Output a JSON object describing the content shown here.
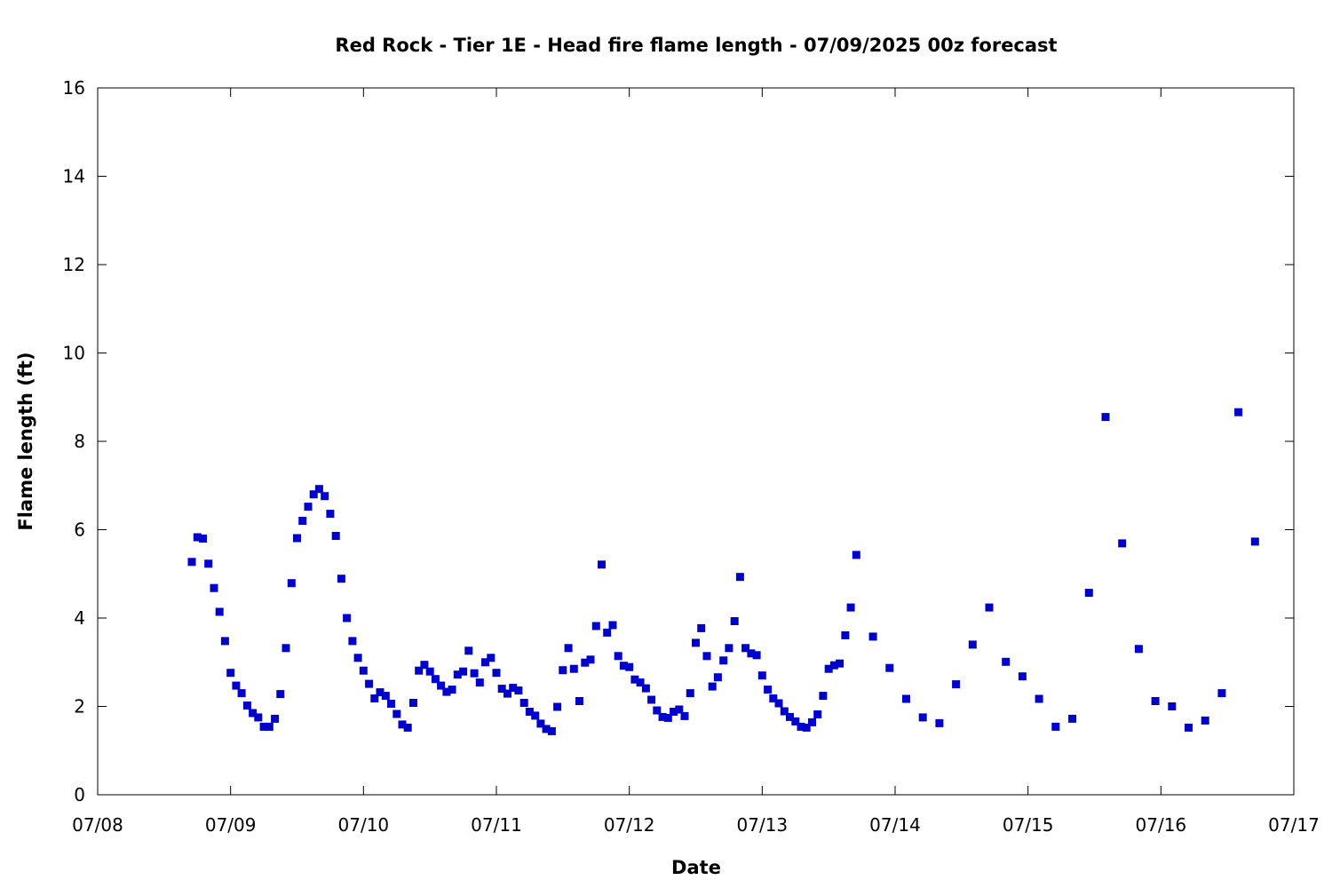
{
  "chart_data": {
    "type": "scatter",
    "title": "Red Rock - Tier 1E - Head fire flame length - 07/09/2025 00z forecast",
    "xlabel": "Date",
    "ylabel": "Flame length (ft)",
    "x_axis": {
      "min": "07/08",
      "max": "07/17",
      "tick_labels": [
        "07/08",
        "07/09",
        "07/10",
        "07/11",
        "07/12",
        "07/13",
        "07/14",
        "07/15",
        "07/16",
        "07/17"
      ]
    },
    "y_axis": {
      "min": 0,
      "max": 16,
      "tick_labels": [
        "0",
        "2",
        "4",
        "6",
        "8",
        "10",
        "12",
        "14",
        "16"
      ]
    },
    "grid": false,
    "legend": "none",
    "marker_color": "#0000cc",
    "series": [
      {
        "points": [
          [
            "07/08 17:00",
            5.27
          ],
          [
            "07/08 18:00",
            5.83
          ],
          [
            "07/08 19:00",
            5.8
          ],
          [
            "07/08 20:00",
            5.23
          ],
          [
            "07/08 21:00",
            4.68
          ],
          [
            "07/08 22:00",
            4.14
          ],
          [
            "07/08 23:00",
            3.48
          ],
          [
            "07/09 00:00",
            2.76
          ],
          [
            "07/09 01:00",
            2.47
          ],
          [
            "07/09 02:00",
            2.3
          ],
          [
            "07/09 03:00",
            2.02
          ],
          [
            "07/09 04:00",
            1.85
          ],
          [
            "07/09 05:00",
            1.75
          ],
          [
            "07/09 06:00",
            1.54
          ],
          [
            "07/09 07:00",
            1.54
          ],
          [
            "07/09 08:00",
            1.72
          ],
          [
            "07/09 09:00",
            2.28
          ],
          [
            "07/09 10:00",
            3.32
          ],
          [
            "07/09 11:00",
            4.79
          ],
          [
            "07/09 12:00",
            5.81
          ],
          [
            "07/09 13:00",
            6.2
          ],
          [
            "07/09 14:00",
            6.52
          ],
          [
            "07/09 15:00",
            6.8
          ],
          [
            "07/09 16:00",
            6.92
          ],
          [
            "07/09 17:00",
            6.76
          ],
          [
            "07/09 18:00",
            6.36
          ],
          [
            "07/09 19:00",
            5.86
          ],
          [
            "07/09 20:00",
            4.89
          ],
          [
            "07/09 21:00",
            4.0
          ],
          [
            "07/09 22:00",
            3.48
          ],
          [
            "07/09 23:00",
            3.1
          ],
          [
            "07/10 00:00",
            2.81
          ],
          [
            "07/10 01:00",
            2.51
          ],
          [
            "07/10 02:00",
            2.18
          ],
          [
            "07/10 03:00",
            2.32
          ],
          [
            "07/10 04:00",
            2.24
          ],
          [
            "07/10 05:00",
            2.06
          ],
          [
            "07/10 06:00",
            1.83
          ],
          [
            "07/10 07:00",
            1.59
          ],
          [
            "07/10 08:00",
            1.52
          ],
          [
            "07/10 09:00",
            2.08
          ],
          [
            "07/10 10:00",
            2.81
          ],
          [
            "07/10 11:00",
            2.94
          ],
          [
            "07/10 12:00",
            2.79
          ],
          [
            "07/10 13:00",
            2.62
          ],
          [
            "07/10 14:00",
            2.47
          ],
          [
            "07/10 15:00",
            2.33
          ],
          [
            "07/10 16:00",
            2.38
          ],
          [
            "07/10 17:00",
            2.72
          ],
          [
            "07/10 18:00",
            2.79
          ],
          [
            "07/10 19:00",
            3.26
          ],
          [
            "07/10 20:00",
            2.75
          ],
          [
            "07/10 21:00",
            2.54
          ],
          [
            "07/10 22:00",
            3.0
          ],
          [
            "07/10 23:00",
            3.1
          ],
          [
            "07/11 00:00",
            2.76
          ],
          [
            "07/11 01:00",
            2.4
          ],
          [
            "07/11 02:00",
            2.29
          ],
          [
            "07/11 03:00",
            2.42
          ],
          [
            "07/11 04:00",
            2.36
          ],
          [
            "07/11 05:00",
            2.08
          ],
          [
            "07/11 06:00",
            1.88
          ],
          [
            "07/11 07:00",
            1.79
          ],
          [
            "07/11 08:00",
            1.61
          ],
          [
            "07/11 09:00",
            1.49
          ],
          [
            "07/11 10:00",
            1.44
          ],
          [
            "07/11 11:00",
            1.99
          ],
          [
            "07/11 12:00",
            2.82
          ],
          [
            "07/11 13:00",
            3.32
          ],
          [
            "07/11 14:00",
            2.85
          ],
          [
            "07/11 15:00",
            2.12
          ],
          [
            "07/11 16:00",
            2.99
          ],
          [
            "07/11 17:00",
            3.06
          ],
          [
            "07/11 18:00",
            3.82
          ],
          [
            "07/11 19:00",
            5.21
          ],
          [
            "07/11 20:00",
            3.67
          ],
          [
            "07/11 21:00",
            3.84
          ],
          [
            "07/11 22:00",
            3.14
          ],
          [
            "07/11 23:00",
            2.92
          ],
          [
            "07/12 00:00",
            2.89
          ],
          [
            "07/12 01:00",
            2.61
          ],
          [
            "07/12 02:00",
            2.54
          ],
          [
            "07/12 03:00",
            2.41
          ],
          [
            "07/12 04:00",
            2.15
          ],
          [
            "07/12 05:00",
            1.91
          ],
          [
            "07/12 06:00",
            1.76
          ],
          [
            "07/12 07:00",
            1.74
          ],
          [
            "07/12 08:00",
            1.88
          ],
          [
            "07/12 09:00",
            1.93
          ],
          [
            "07/12 10:00",
            1.78
          ],
          [
            "07/12 11:00",
            2.3
          ],
          [
            "07/12 12:00",
            3.44
          ],
          [
            "07/12 13:00",
            3.77
          ],
          [
            "07/12 14:00",
            3.14
          ],
          [
            "07/12 15:00",
            2.45
          ],
          [
            "07/12 16:00",
            2.66
          ],
          [
            "07/12 17:00",
            3.04
          ],
          [
            "07/12 18:00",
            3.32
          ],
          [
            "07/12 19:00",
            3.93
          ],
          [
            "07/12 20:00",
            4.93
          ],
          [
            "07/12 21:00",
            3.32
          ],
          [
            "07/12 22:00",
            3.2
          ],
          [
            "07/12 23:00",
            3.16
          ],
          [
            "07/13 00:00",
            2.7
          ],
          [
            "07/13 01:00",
            2.38
          ],
          [
            "07/13 02:00",
            2.18
          ],
          [
            "07/13 03:00",
            2.07
          ],
          [
            "07/13 04:00",
            1.89
          ],
          [
            "07/13 05:00",
            1.76
          ],
          [
            "07/13 06:00",
            1.66
          ],
          [
            "07/13 07:00",
            1.54
          ],
          [
            "07/13 08:00",
            1.52
          ],
          [
            "07/13 09:00",
            1.64
          ],
          [
            "07/13 10:00",
            1.82
          ],
          [
            "07/13 11:00",
            2.24
          ],
          [
            "07/13 12:00",
            2.85
          ],
          [
            "07/13 13:00",
            2.93
          ],
          [
            "07/13 14:00",
            2.97
          ],
          [
            "07/13 15:00",
            3.61
          ],
          [
            "07/13 16:00",
            4.24
          ],
          [
            "07/13 17:00",
            5.43
          ],
          [
            "07/13 20:00",
            3.58
          ],
          [
            "07/13 23:00",
            2.87
          ],
          [
            "07/14 02:00",
            2.17
          ],
          [
            "07/14 05:00",
            1.75
          ],
          [
            "07/14 08:00",
            1.62
          ],
          [
            "07/14 11:00",
            2.5
          ],
          [
            "07/14 14:00",
            3.4
          ],
          [
            "07/14 17:00",
            4.24
          ],
          [
            "07/14 20:00",
            3.01
          ],
          [
            "07/14 23:00",
            2.68
          ],
          [
            "07/15 02:00",
            2.17
          ],
          [
            "07/15 05:00",
            1.54
          ],
          [
            "07/15 08:00",
            1.72
          ],
          [
            "07/15 11:00",
            4.57
          ],
          [
            "07/15 14:00",
            8.55
          ],
          [
            "07/15 17:00",
            5.69
          ],
          [
            "07/15 20:00",
            3.3
          ],
          [
            "07/15 23:00",
            2.12
          ],
          [
            "07/16 02:00",
            2.0
          ],
          [
            "07/16 05:00",
            1.52
          ],
          [
            "07/16 08:00",
            1.68
          ],
          [
            "07/16 11:00",
            2.3
          ],
          [
            "07/16 14:00",
            8.66
          ],
          [
            "07/16 17:00",
            5.73
          ]
        ]
      }
    ]
  }
}
